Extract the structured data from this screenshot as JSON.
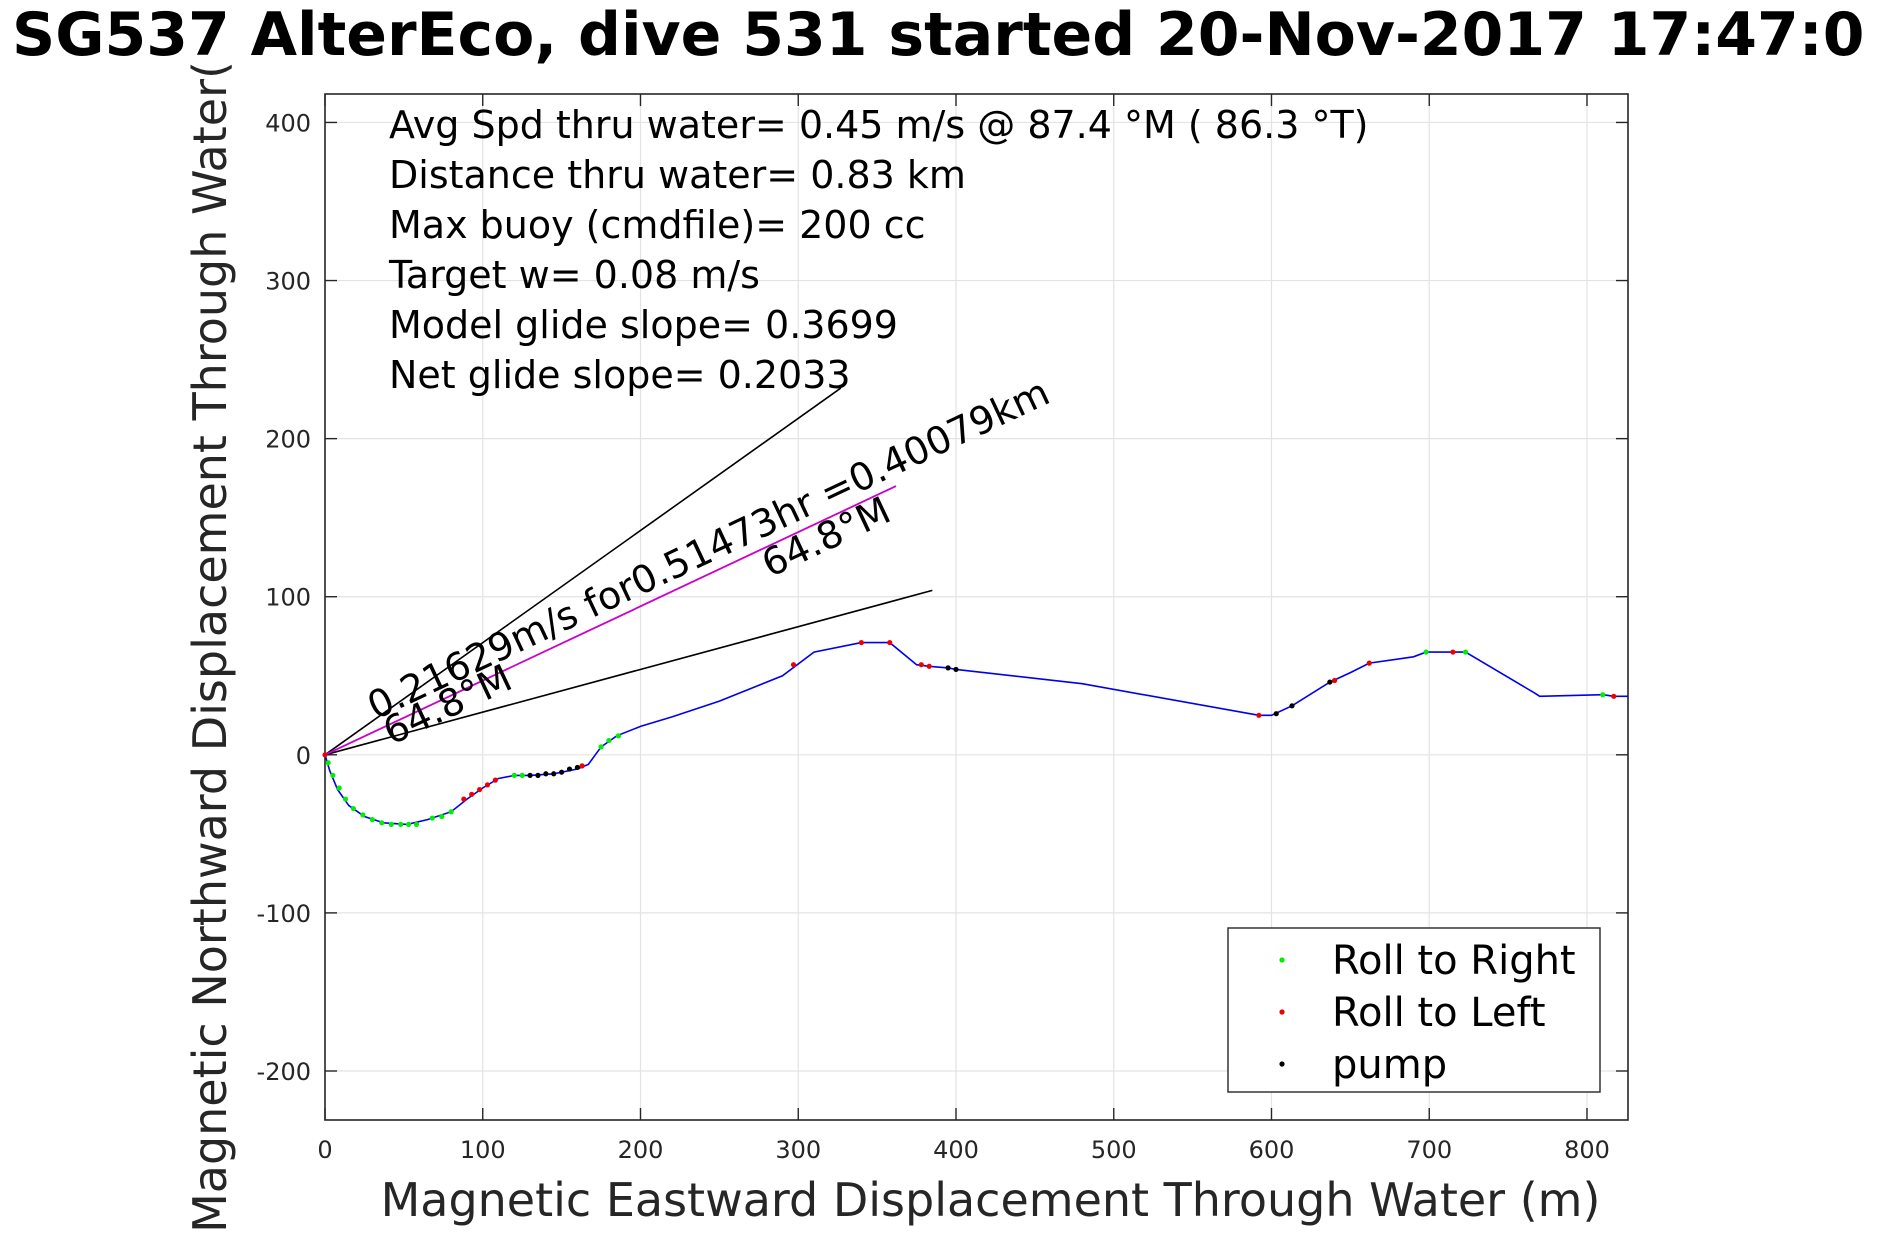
{
  "title": "SG537 AlterEco, dive 531 started 20-Nov-2017 17:47:0",
  "chart_data": {
    "type": "line",
    "xlabel": "Magnetic Eastward Displacement Through Water (m)",
    "ylabel": "Magnetic Northward Displacement Through Water(",
    "xlim": [
      0,
      826
    ],
    "ylim": [
      -231,
      418
    ],
    "xticks": [
      0,
      100,
      200,
      300,
      400,
      500,
      600,
      700,
      800
    ],
    "yticks": [
      -200,
      -100,
      0,
      100,
      200,
      300,
      400
    ],
    "xtick_labels": [
      "0",
      "100",
      "200",
      "300",
      "400",
      "500",
      "600",
      "700",
      "800"
    ],
    "ytick_labels": [
      "-200",
      "-100",
      "0",
      "100",
      "200",
      "300",
      "400"
    ],
    "grid": true,
    "annotations": [
      "Avg Spd thru water=  0.45 m/s @  87.4 °M ( 86.3 °T)",
      "Distance thru water=  0.83 km",
      "Max buoy (cmdfile)= 200 cc",
      "Target w= 0.08 m/s",
      "Model glide slope= 0.3699",
      "Net glide slope= 0.2033"
    ],
    "vector_labels": {
      "speed": "0.21629m/s for0.51473hr =0.40079km",
      "heading_upper": "64.8°M",
      "heading_lower": "64.8°M"
    },
    "reference_lines": [
      {
        "x": [
          0,
          327
        ],
        "y": [
          0,
          232
        ]
      },
      {
        "x": [
          0,
          385
        ],
        "y": [
          0,
          104
        ]
      }
    ],
    "vector_line": {
      "x": [
        0,
        362
      ],
      "y": [
        0,
        170
      ],
      "color": "#cc00cc"
    },
    "legend": {
      "location": "bottom-right",
      "entries": [
        {
          "label": "Roll to Right",
          "color": "#00ee00"
        },
        {
          "label": "Roll to Left",
          "color": "#ee0000"
        },
        {
          "label": "pump",
          "color": "#000000"
        }
      ]
    },
    "series": [
      {
        "name": "track",
        "color": "#0000ee",
        "x": [
          0,
          3,
          8,
          15,
          25,
          37,
          52,
          65,
          80,
          90,
          100,
          110,
          120,
          130,
          145,
          160,
          167,
          175,
          185,
          200,
          220,
          250,
          290,
          310,
          340,
          358,
          375,
          383,
          395,
          400,
          480,
          592,
          600,
          613,
          637,
          650,
          662,
          690,
          698,
          715,
          723,
          767,
          770,
          810,
          817,
          826
        ],
        "y": [
          0,
          -10,
          -22,
          -32,
          -39,
          -43,
          -44,
          -41,
          -36,
          -28,
          -21,
          -15,
          -13,
          -13,
          -12,
          -9,
          -6,
          5,
          12,
          18,
          24,
          34,
          50,
          65,
          71,
          71,
          57,
          56,
          55,
          54,
          45,
          25,
          25,
          31,
          46,
          52,
          58,
          62,
          65,
          65,
          65,
          39,
          37,
          38,
          37,
          37
        ]
      }
    ],
    "markers": {
      "roll_right": {
        "x": [
          2,
          5,
          9,
          13,
          18,
          24,
          30,
          36,
          42,
          48,
          53,
          58,
          68,
          74,
          80,
          120,
          125,
          175,
          180,
          186,
          698,
          723,
          810
        ],
        "y": [
          -5,
          -13,
          -21,
          -28,
          -34,
          -38,
          -41,
          -43,
          -44,
          -44,
          -44,
          -44,
          -40,
          -39,
          -36,
          -13,
          -13,
          5,
          9,
          12,
          65,
          65,
          38
        ]
      },
      "roll_left": {
        "x": [
          0,
          88,
          93,
          98,
          103,
          108,
          163,
          297,
          340,
          358,
          378,
          383,
          592,
          640,
          662,
          715,
          817
        ],
        "y": [
          0,
          -28,
          -25,
          -22,
          -19,
          -16,
          -7,
          57,
          71,
          71,
          57,
          56,
          25,
          47,
          58,
          65,
          37
        ]
      },
      "pump": {
        "x": [
          130,
          135,
          140,
          145,
          150,
          155,
          160,
          395,
          400,
          603,
          613,
          637
        ],
        "y": [
          -13,
          -13,
          -12,
          -12,
          -11,
          -9,
          -8,
          55,
          54,
          26,
          31,
          46
        ]
      }
    }
  }
}
